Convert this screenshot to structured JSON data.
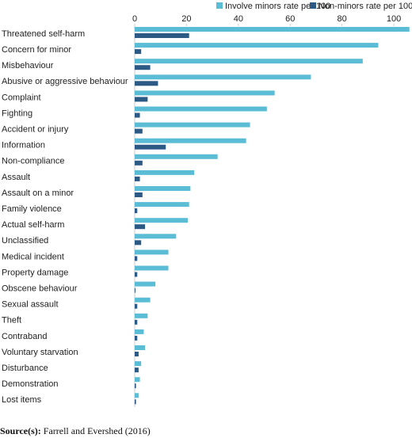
{
  "chart_data": {
    "type": "hbar",
    "categories": [
      "Threatened self-harm",
      "Concern for minor",
      "Misbehaviour",
      "Abusive or aggressive behaviour",
      "Complaint",
      "Fighting",
      "Accident or injury",
      "Information",
      "Non-compliance",
      "Assault",
      "Assault on a minor",
      "Family violence",
      "Actual self-harm",
      "Unclassified",
      "Medical incident",
      "Property damage",
      "Obscene behaviour",
      "Sexual assault",
      "Theft",
      "Contraband",
      "Voluntary starvation",
      "Disturbance",
      "Demonstration",
      "Lost items"
    ],
    "series": [
      {
        "name": "Involve minors rate per 100",
        "color": "#5bbcd6",
        "values": [
          106,
          94,
          88,
          68,
          54,
          51,
          44.5,
          43,
          32,
          23,
          21.5,
          21,
          20.5,
          16,
          13,
          13,
          8,
          6,
          5,
          3.5,
          4,
          2.5,
          2,
          1.5
        ]
      },
      {
        "name": "Non-minors rate per 100",
        "color": "#2c5a85",
        "values": [
          21,
          2.5,
          6,
          9,
          5,
          2,
          3,
          12,
          3,
          2,
          3,
          1,
          4,
          2.5,
          1,
          1,
          0.3,
          1,
          1,
          1,
          1.5,
          1.5,
          0.5,
          0.5
        ]
      }
    ],
    "xlim": [
      0,
      107
    ],
    "xticks": [
      0,
      20,
      40,
      60,
      80,
      100
    ],
    "legend": "top-right",
    "source_label": "Source(s):",
    "source_text": "Farrell and Evershed (2016)"
  }
}
